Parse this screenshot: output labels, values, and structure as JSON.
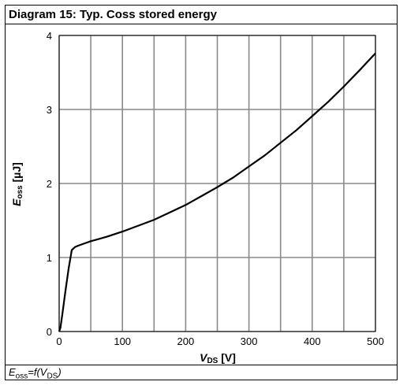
{
  "chart_data": {
    "type": "line",
    "title": "Diagram 15: Typ. Coss stored energy",
    "xlabel": {
      "main": "V",
      "sub": "DS",
      "unit": " [V]"
    },
    "ylabel": {
      "main": "E",
      "sub": "oss",
      "unit": " [µJ]"
    },
    "caption": {
      "main1": "E",
      "sub1": "oss",
      "mid": "=f(V",
      "sub2": "DS",
      "end": ")"
    },
    "xlim": [
      0,
      500
    ],
    "ylim": [
      0,
      4
    ],
    "x_ticks": [
      0,
      100,
      200,
      300,
      400,
      500
    ],
    "y_ticks": [
      0,
      1,
      2,
      3,
      4
    ],
    "x_gridlines": [
      0,
      50,
      100,
      150,
      200,
      250,
      300,
      350,
      400,
      450,
      500
    ],
    "y_gridlines": [
      0,
      1,
      2,
      3,
      4
    ],
    "grid": true,
    "series": [
      {
        "color": "#000000",
        "x": [
          0,
          2,
          5,
          10,
          15,
          20,
          25,
          30,
          40,
          50,
          75,
          100,
          125,
          150,
          175,
          200,
          225,
          250,
          275,
          300,
          325,
          350,
          375,
          400,
          425,
          450,
          475,
          500
        ],
        "y": [
          0,
          0.05,
          0.23,
          0.55,
          0.85,
          1.1,
          1.14,
          1.16,
          1.19,
          1.22,
          1.28,
          1.35,
          1.43,
          1.51,
          1.61,
          1.71,
          1.83,
          1.95,
          2.08,
          2.23,
          2.38,
          2.55,
          2.72,
          2.91,
          3.1,
          3.31,
          3.53,
          3.76
        ]
      }
    ]
  }
}
